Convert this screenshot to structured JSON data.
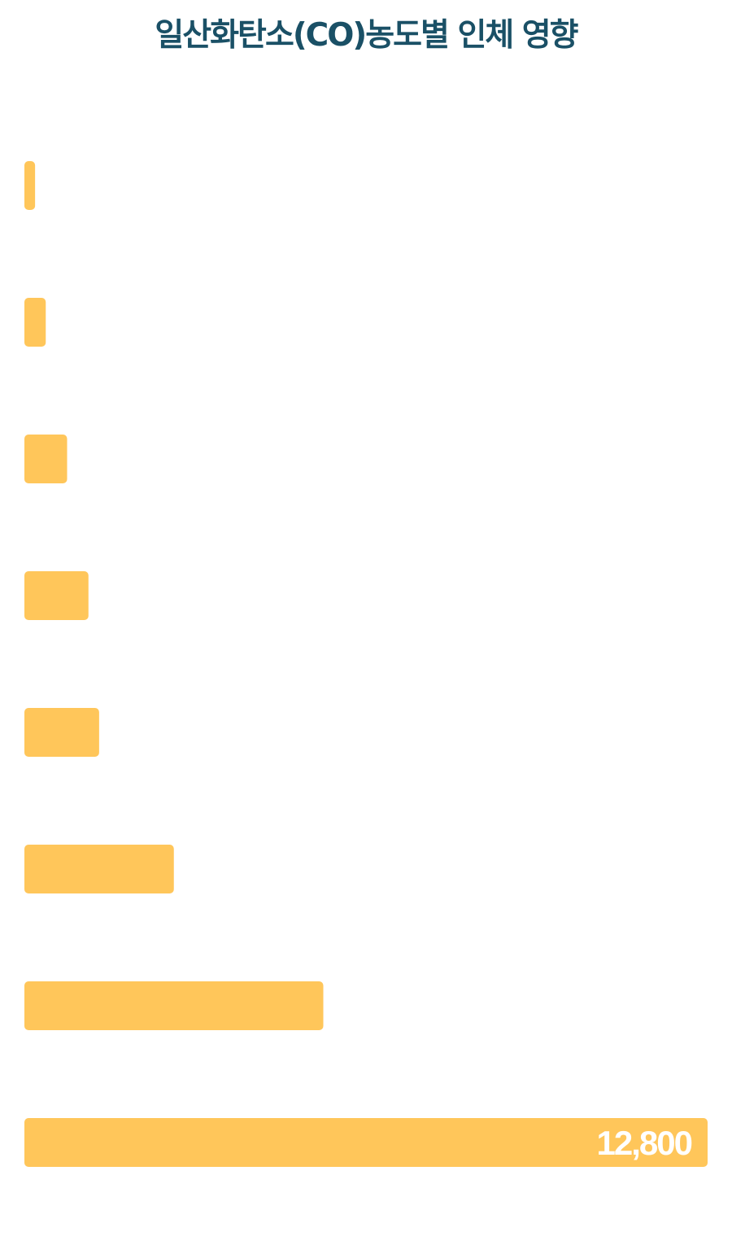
{
  "chart_data": {
    "type": "bar",
    "orientation": "horizontal",
    "title": "일산화탄소(CO)농도별 인체 영향",
    "values": [
      200,
      400,
      800,
      1200,
      1400,
      2800,
      5600,
      12800
    ],
    "data_labels": [
      "",
      "",
      "",
      "",
      "",
      "",
      "",
      "12,800"
    ],
    "xlim": [
      0,
      12800
    ],
    "grid": false,
    "legend": "none"
  },
  "colors": {
    "bar": "#ffc65a",
    "title": "#1a5066",
    "value_label": "#ffffff"
  }
}
